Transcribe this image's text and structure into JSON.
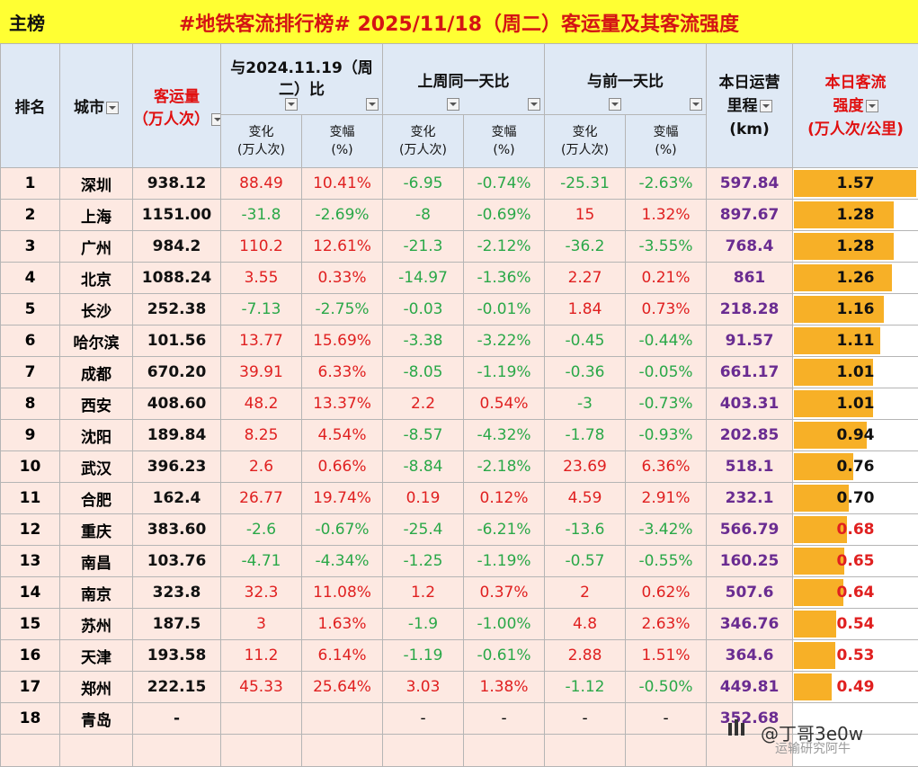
{
  "header": {
    "left_label": "主榜",
    "title": "#地铁客流排行榜# 2025/11/18（周二）客运量及其客流强度"
  },
  "columns": {
    "rank": "排名",
    "city": "城市",
    "volume_line1": "客运量",
    "volume_line2": "（万人次）",
    "yoy_group_line1": "与2024.11.19（周",
    "yoy_group_line2": "二）比",
    "wow_group": "上周同一天比",
    "dod_group": "与前一天比",
    "mileage_line1": "本日运营",
    "mileage_line2": "里程",
    "mileage_line3": "(km)",
    "intensity_line1": "本日客流",
    "intensity_line2": "强度",
    "intensity_line3": "(万人次/公里)",
    "change_line1": "变化",
    "change_line2": "(万人次)",
    "pct_line1": "变幅",
    "pct_line2": "(%)"
  },
  "rows": [
    {
      "rank": "1",
      "city": "深圳",
      "volume": "938.12",
      "yoy_chg": "88.49",
      "yoy_pct": "10.41%",
      "wow_chg": "-6.95",
      "wow_pct": "-0.74%",
      "dod_chg": "-25.31",
      "dod_pct": "-2.63%",
      "mileage": "597.84",
      "intensity": "1.57"
    },
    {
      "rank": "2",
      "city": "上海",
      "volume": "1151.00",
      "yoy_chg": "-31.8",
      "yoy_pct": "-2.69%",
      "wow_chg": "-8",
      "wow_pct": "-0.69%",
      "dod_chg": "15",
      "dod_pct": "1.32%",
      "mileage": "897.67",
      "intensity": "1.28"
    },
    {
      "rank": "3",
      "city": "广州",
      "volume": "984.2",
      "yoy_chg": "110.2",
      "yoy_pct": "12.61%",
      "wow_chg": "-21.3",
      "wow_pct": "-2.12%",
      "dod_chg": "-36.2",
      "dod_pct": "-3.55%",
      "mileage": "768.4",
      "intensity": "1.28"
    },
    {
      "rank": "4",
      "city": "北京",
      "volume": "1088.24",
      "yoy_chg": "3.55",
      "yoy_pct": "0.33%",
      "wow_chg": "-14.97",
      "wow_pct": "-1.36%",
      "dod_chg": "2.27",
      "dod_pct": "0.21%",
      "mileage": "861",
      "intensity": "1.26"
    },
    {
      "rank": "5",
      "city": "长沙",
      "volume": "252.38",
      "yoy_chg": "-7.13",
      "yoy_pct": "-2.75%",
      "wow_chg": "-0.03",
      "wow_pct": "-0.01%",
      "dod_chg": "1.84",
      "dod_pct": "0.73%",
      "mileage": "218.28",
      "intensity": "1.16"
    },
    {
      "rank": "6",
      "city": "哈尔滨",
      "volume": "101.56",
      "yoy_chg": "13.77",
      "yoy_pct": "15.69%",
      "wow_chg": "-3.38",
      "wow_pct": "-3.22%",
      "dod_chg": "-0.45",
      "dod_pct": "-0.44%",
      "mileage": "91.57",
      "intensity": "1.11"
    },
    {
      "rank": "7",
      "city": "成都",
      "volume": "670.20",
      "yoy_chg": "39.91",
      "yoy_pct": "6.33%",
      "wow_chg": "-8.05",
      "wow_pct": "-1.19%",
      "dod_chg": "-0.36",
      "dod_pct": "-0.05%",
      "mileage": "661.17",
      "intensity": "1.01"
    },
    {
      "rank": "8",
      "city": "西安",
      "volume": "408.60",
      "yoy_chg": "48.2",
      "yoy_pct": "13.37%",
      "wow_chg": "2.2",
      "wow_pct": "0.54%",
      "dod_chg": "-3",
      "dod_pct": "-0.73%",
      "mileage": "403.31",
      "intensity": "1.01"
    },
    {
      "rank": "9",
      "city": "沈阳",
      "volume": "189.84",
      "yoy_chg": "8.25",
      "yoy_pct": "4.54%",
      "wow_chg": "-8.57",
      "wow_pct": "-4.32%",
      "dod_chg": "-1.78",
      "dod_pct": "-0.93%",
      "mileage": "202.85",
      "intensity": "0.94"
    },
    {
      "rank": "10",
      "city": "武汉",
      "volume": "396.23",
      "yoy_chg": "2.6",
      "yoy_pct": "0.66%",
      "wow_chg": "-8.84",
      "wow_pct": "-2.18%",
      "dod_chg": "23.69",
      "dod_pct": "6.36%",
      "mileage": "518.1",
      "intensity": "0.76"
    },
    {
      "rank": "11",
      "city": "合肥",
      "volume": "162.4",
      "yoy_chg": "26.77",
      "yoy_pct": "19.74%",
      "wow_chg": "0.19",
      "wow_pct": "0.12%",
      "dod_chg": "4.59",
      "dod_pct": "2.91%",
      "mileage": "232.1",
      "intensity": "0.70"
    },
    {
      "rank": "12",
      "city": "重庆",
      "volume": "383.60",
      "yoy_chg": "-2.6",
      "yoy_pct": "-0.67%",
      "wow_chg": "-25.4",
      "wow_pct": "-6.21%",
      "dod_chg": "-13.6",
      "dod_pct": "-3.42%",
      "mileage": "566.79",
      "intensity": "0.68"
    },
    {
      "rank": "13",
      "city": "南昌",
      "volume": "103.76",
      "yoy_chg": "-4.71",
      "yoy_pct": "-4.34%",
      "wow_chg": "-1.25",
      "wow_pct": "-1.19%",
      "dod_chg": "-0.57",
      "dod_pct": "-0.55%",
      "mileage": "160.25",
      "intensity": "0.65"
    },
    {
      "rank": "14",
      "city": "南京",
      "volume": "323.8",
      "yoy_chg": "32.3",
      "yoy_pct": "11.08%",
      "wow_chg": "1.2",
      "wow_pct": "0.37%",
      "dod_chg": "2",
      "dod_pct": "0.62%",
      "mileage": "507.6",
      "intensity": "0.64"
    },
    {
      "rank": "15",
      "city": "苏州",
      "volume": "187.5",
      "yoy_chg": "3",
      "yoy_pct": "1.63%",
      "wow_chg": "-1.9",
      "wow_pct": "-1.00%",
      "dod_chg": "4.8",
      "dod_pct": "2.63%",
      "mileage": "346.76",
      "intensity": "0.54"
    },
    {
      "rank": "16",
      "city": "天津",
      "volume": "193.58",
      "yoy_chg": "11.2",
      "yoy_pct": "6.14%",
      "wow_chg": "-1.19",
      "wow_pct": "-0.61%",
      "dod_chg": "2.88",
      "dod_pct": "1.51%",
      "mileage": "364.6",
      "intensity": "0.53"
    },
    {
      "rank": "17",
      "city": "郑州",
      "volume": "222.15",
      "yoy_chg": "45.33",
      "yoy_pct": "25.64%",
      "wow_chg": "3.03",
      "wow_pct": "1.38%",
      "dod_chg": "-1.12",
      "dod_pct": "-0.50%",
      "mileage": "449.81",
      "intensity": "0.49"
    },
    {
      "rank": "18",
      "city": "青岛",
      "volume": "-",
      "yoy_chg": "",
      "yoy_pct": "",
      "wow_chg": "-",
      "wow_pct": "-",
      "dod_chg": "-",
      "dod_pct": "-",
      "mileage": "352.68",
      "intensity": ""
    }
  ],
  "watermark": {
    "handle": "@丁哥3e0w",
    "subtitle": "运输研究阿牛"
  },
  "colors": {
    "title_bg": "#ffff33",
    "title_text": "#d41414",
    "header_bg": "#dfe9f5",
    "row_bg": "#fde9e2",
    "positive": "#e02020",
    "negative": "#2aa848",
    "mileage": "#6a2c91",
    "intensity_bar": "#f7b027"
  }
}
